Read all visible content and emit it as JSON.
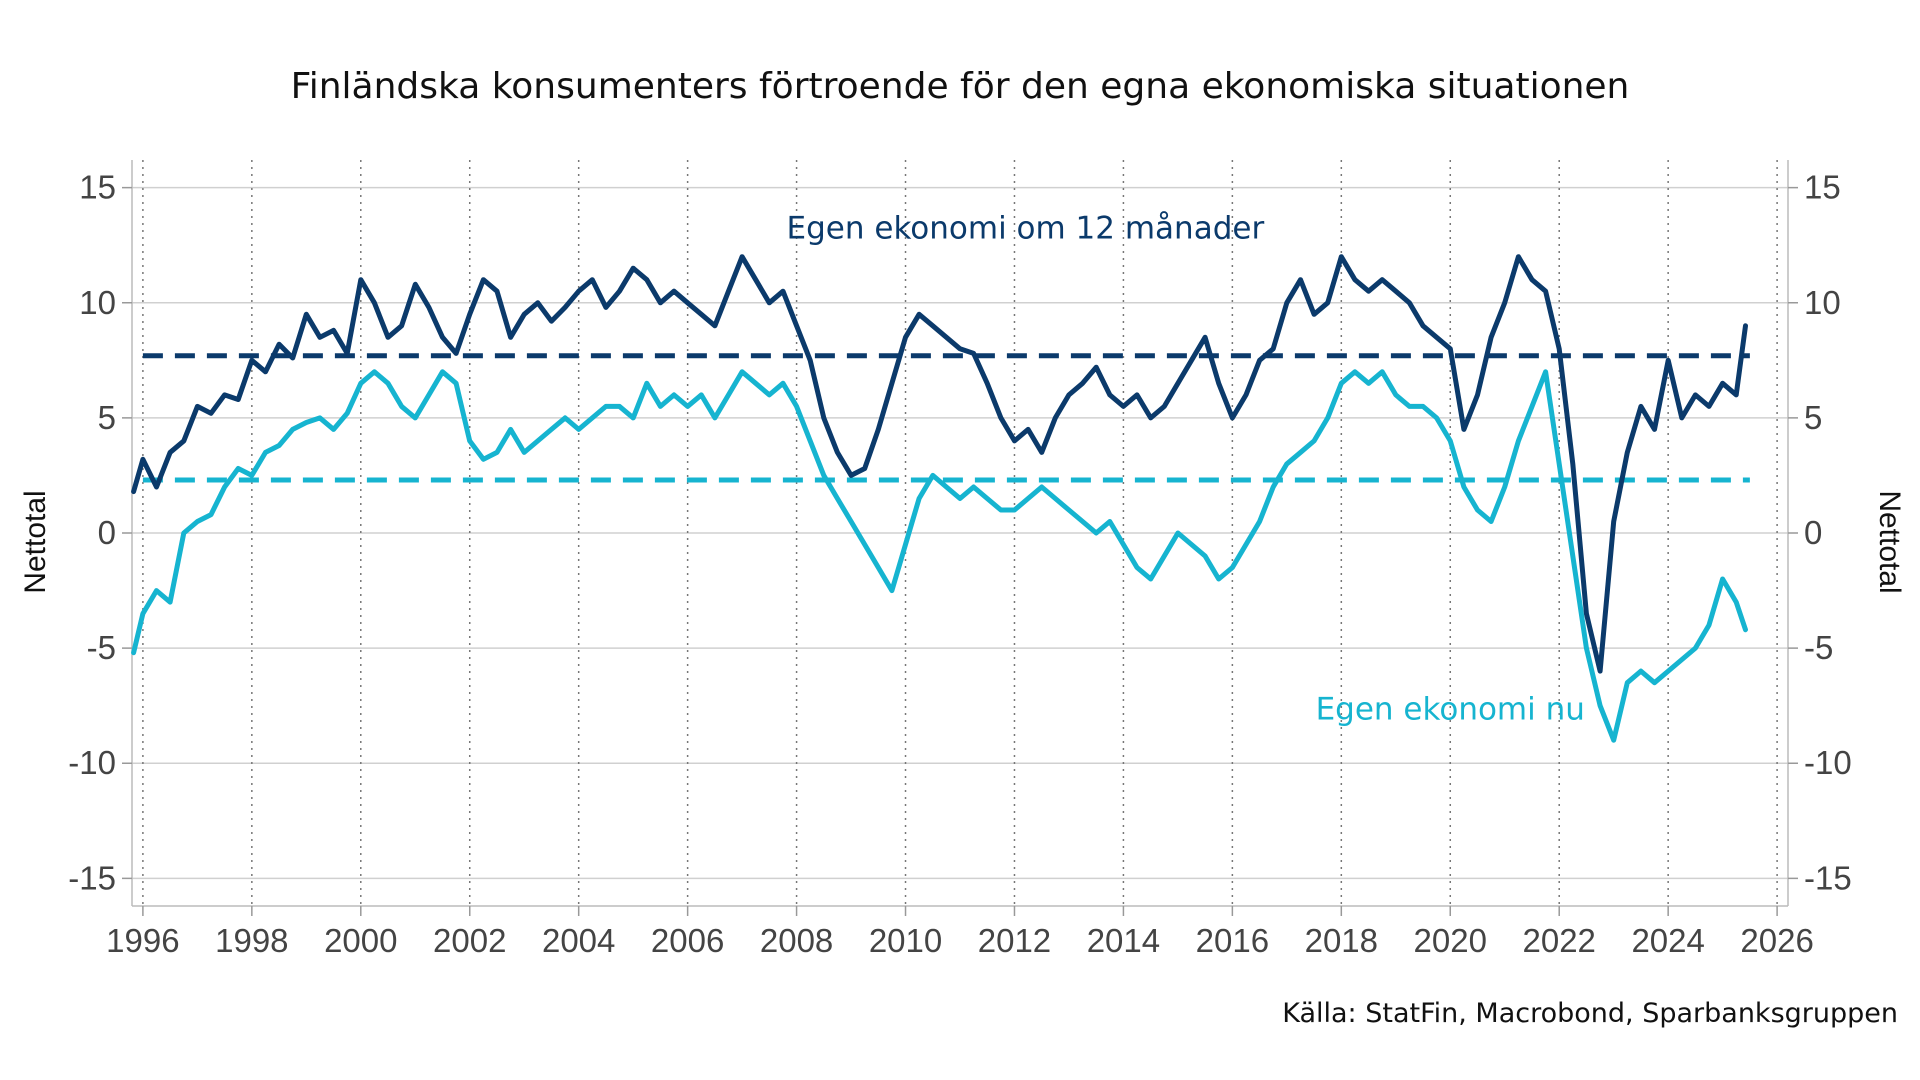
{
  "chart_data": {
    "type": "line",
    "title": "Finländska konsumenters förtroende för den egna ekonomiska situationen",
    "source": "Källa: StatFin, Macrobond, Sparbanksgruppen",
    "ylabel_left": "Nettotal",
    "ylabel_right": "Nettotal",
    "xlim": [
      1995.8,
      2026.2
    ],
    "ylim": [
      -16.2,
      16.2
    ],
    "x_ticks": [
      1996,
      1998,
      2000,
      2002,
      2004,
      2006,
      2008,
      2010,
      2012,
      2014,
      2016,
      2018,
      2020,
      2022,
      2024,
      2026
    ],
    "x_tick_labels": [
      "1996",
      "1998",
      "2000",
      "2002",
      "2004",
      "2006",
      "2008",
      "2010",
      "2012",
      "2014",
      "2016",
      "2018",
      "2020",
      "2022",
      "2024",
      "2026"
    ],
    "y_ticks": [
      15,
      10,
      5,
      0,
      -5,
      -10,
      -15
    ],
    "y_tick_labels": [
      "15",
      "10",
      "5",
      "0",
      "-5",
      "-10",
      "-15"
    ],
    "grid": {
      "horizontal": true,
      "vertical_dotted": true
    },
    "colors": {
      "future": "#0b3a6b",
      "now": "#16b4d0",
      "grid": "#d0d0d0",
      "vgrid": "#777777"
    },
    "series": [
      {
        "name": "Egen ekonomi om 12 månader",
        "average": 7.7,
        "label_x": 2012.2,
        "label_y": 12.8,
        "points": [
          [
            1995.83,
            1.8
          ],
          [
            1996.0,
            3.2
          ],
          [
            1996.25,
            2.0
          ],
          [
            1996.5,
            3.5
          ],
          [
            1996.75,
            4.0
          ],
          [
            1997.0,
            5.5
          ],
          [
            1997.25,
            5.2
          ],
          [
            1997.5,
            6.0
          ],
          [
            1997.75,
            5.8
          ],
          [
            1998.0,
            7.5
          ],
          [
            1998.25,
            7.0
          ],
          [
            1998.5,
            8.2
          ],
          [
            1998.75,
            7.6
          ],
          [
            1999.0,
            9.5
          ],
          [
            1999.25,
            8.5
          ],
          [
            1999.5,
            8.8
          ],
          [
            1999.75,
            7.8
          ],
          [
            2000.0,
            11.0
          ],
          [
            2000.25,
            10.0
          ],
          [
            2000.5,
            8.5
          ],
          [
            2000.75,
            9.0
          ],
          [
            2001.0,
            10.8
          ],
          [
            2001.25,
            9.8
          ],
          [
            2001.5,
            8.5
          ],
          [
            2001.75,
            7.8
          ],
          [
            2002.0,
            9.5
          ],
          [
            2002.25,
            11.0
          ],
          [
            2002.5,
            10.5
          ],
          [
            2002.75,
            8.5
          ],
          [
            2003.0,
            9.5
          ],
          [
            2003.25,
            10.0
          ],
          [
            2003.5,
            9.2
          ],
          [
            2003.75,
            9.8
          ],
          [
            2004.0,
            10.5
          ],
          [
            2004.25,
            11.0
          ],
          [
            2004.5,
            9.8
          ],
          [
            2004.75,
            10.5
          ],
          [
            2005.0,
            11.5
          ],
          [
            2005.25,
            11.0
          ],
          [
            2005.5,
            10.0
          ],
          [
            2005.75,
            10.5
          ],
          [
            2006.0,
            10.0
          ],
          [
            2006.25,
            9.5
          ],
          [
            2006.5,
            9.0
          ],
          [
            2006.75,
            10.5
          ],
          [
            2007.0,
            12.0
          ],
          [
            2007.25,
            11.0
          ],
          [
            2007.5,
            10.0
          ],
          [
            2007.75,
            10.5
          ],
          [
            2008.0,
            9.0
          ],
          [
            2008.25,
            7.5
          ],
          [
            2008.5,
            5.0
          ],
          [
            2008.75,
            3.5
          ],
          [
            2009.0,
            2.5
          ],
          [
            2009.25,
            2.8
          ],
          [
            2009.5,
            4.5
          ],
          [
            2009.75,
            6.5
          ],
          [
            2010.0,
            8.5
          ],
          [
            2010.25,
            9.5
          ],
          [
            2010.5,
            9.0
          ],
          [
            2010.75,
            8.5
          ],
          [
            2011.0,
            8.0
          ],
          [
            2011.25,
            7.8
          ],
          [
            2011.5,
            6.5
          ],
          [
            2011.75,
            5.0
          ],
          [
            2012.0,
            4.0
          ],
          [
            2012.25,
            4.5
          ],
          [
            2012.5,
            3.5
          ],
          [
            2012.75,
            5.0
          ],
          [
            2013.0,
            6.0
          ],
          [
            2013.25,
            6.5
          ],
          [
            2013.5,
            7.2
          ],
          [
            2013.75,
            6.0
          ],
          [
            2014.0,
            5.5
          ],
          [
            2014.25,
            6.0
          ],
          [
            2014.5,
            5.0
          ],
          [
            2014.75,
            5.5
          ],
          [
            2015.0,
            6.5
          ],
          [
            2015.25,
            7.5
          ],
          [
            2015.5,
            8.5
          ],
          [
            2015.75,
            6.5
          ],
          [
            2016.0,
            5.0
          ],
          [
            2016.25,
            6.0
          ],
          [
            2016.5,
            7.5
          ],
          [
            2016.75,
            8.0
          ],
          [
            2017.0,
            10.0
          ],
          [
            2017.25,
            11.0
          ],
          [
            2017.5,
            9.5
          ],
          [
            2017.75,
            10.0
          ],
          [
            2018.0,
            12.0
          ],
          [
            2018.25,
            11.0
          ],
          [
            2018.5,
            10.5
          ],
          [
            2018.75,
            11.0
          ],
          [
            2019.0,
            10.5
          ],
          [
            2019.25,
            10.0
          ],
          [
            2019.5,
            9.0
          ],
          [
            2019.75,
            8.5
          ],
          [
            2020.0,
            8.0
          ],
          [
            2020.25,
            4.5
          ],
          [
            2020.5,
            6.0
          ],
          [
            2020.75,
            8.5
          ],
          [
            2021.0,
            10.0
          ],
          [
            2021.25,
            12.0
          ],
          [
            2021.5,
            11.0
          ],
          [
            2021.75,
            10.5
          ],
          [
            2022.0,
            8.0
          ],
          [
            2022.25,
            3.0
          ],
          [
            2022.5,
            -3.5
          ],
          [
            2022.75,
            -6.0
          ],
          [
            2023.0,
            0.5
          ],
          [
            2023.25,
            3.5
          ],
          [
            2023.5,
            5.5
          ],
          [
            2023.75,
            4.5
          ],
          [
            2024.0,
            7.5
          ],
          [
            2024.25,
            5.0
          ],
          [
            2024.5,
            6.0
          ],
          [
            2024.75,
            5.5
          ],
          [
            2025.0,
            6.5
          ],
          [
            2025.25,
            6.0
          ],
          [
            2025.42,
            9.0
          ]
        ]
      },
      {
        "name": "Egen ekonomi nu",
        "average": 2.3,
        "label_x": 2020.0,
        "label_y": -8.1,
        "points": [
          [
            1995.83,
            -5.2
          ],
          [
            1996.0,
            -3.5
          ],
          [
            1996.25,
            -2.5
          ],
          [
            1996.5,
            -3.0
          ],
          [
            1996.75,
            0.0
          ],
          [
            1997.0,
            0.5
          ],
          [
            1997.25,
            0.8
          ],
          [
            1997.5,
            2.0
          ],
          [
            1997.75,
            2.8
          ],
          [
            1998.0,
            2.5
          ],
          [
            1998.25,
            3.5
          ],
          [
            1998.5,
            3.8
          ],
          [
            1998.75,
            4.5
          ],
          [
            1999.0,
            4.8
          ],
          [
            1999.25,
            5.0
          ],
          [
            1999.5,
            4.5
          ],
          [
            1999.75,
            5.2
          ],
          [
            2000.0,
            6.5
          ],
          [
            2000.25,
            7.0
          ],
          [
            2000.5,
            6.5
          ],
          [
            2000.75,
            5.5
          ],
          [
            2001.0,
            5.0
          ],
          [
            2001.25,
            6.0
          ],
          [
            2001.5,
            7.0
          ],
          [
            2001.75,
            6.5
          ],
          [
            2002.0,
            4.0
          ],
          [
            2002.25,
            3.2
          ],
          [
            2002.5,
            3.5
          ],
          [
            2002.75,
            4.5
          ],
          [
            2003.0,
            3.5
          ],
          [
            2003.25,
            4.0
          ],
          [
            2003.5,
            4.5
          ],
          [
            2003.75,
            5.0
          ],
          [
            2004.0,
            4.5
          ],
          [
            2004.25,
            5.0
          ],
          [
            2004.5,
            5.5
          ],
          [
            2004.75,
            5.5
          ],
          [
            2005.0,
            5.0
          ],
          [
            2005.25,
            6.5
          ],
          [
            2005.5,
            5.5
          ],
          [
            2005.75,
            6.0
          ],
          [
            2006.0,
            5.5
          ],
          [
            2006.25,
            6.0
          ],
          [
            2006.5,
            5.0
          ],
          [
            2006.75,
            6.0
          ],
          [
            2007.0,
            7.0
          ],
          [
            2007.25,
            6.5
          ],
          [
            2007.5,
            6.0
          ],
          [
            2007.75,
            6.5
          ],
          [
            2008.0,
            5.5
          ],
          [
            2008.25,
            4.0
          ],
          [
            2008.5,
            2.5
          ],
          [
            2008.75,
            1.5
          ],
          [
            2009.0,
            0.5
          ],
          [
            2009.25,
            -0.5
          ],
          [
            2009.5,
            -1.5
          ],
          [
            2009.75,
            -2.5
          ],
          [
            2010.0,
            -0.5
          ],
          [
            2010.25,
            1.5
          ],
          [
            2010.5,
            2.5
          ],
          [
            2010.75,
            2.0
          ],
          [
            2011.0,
            1.5
          ],
          [
            2011.25,
            2.0
          ],
          [
            2011.5,
            1.5
          ],
          [
            2011.75,
            1.0
          ],
          [
            2012.0,
            1.0
          ],
          [
            2012.25,
            1.5
          ],
          [
            2012.5,
            2.0
          ],
          [
            2012.75,
            1.5
          ],
          [
            2013.0,
            1.0
          ],
          [
            2013.25,
            0.5
          ],
          [
            2013.5,
            0.0
          ],
          [
            2013.75,
            0.5
          ],
          [
            2014.0,
            -0.5
          ],
          [
            2014.25,
            -1.5
          ],
          [
            2014.5,
            -2.0
          ],
          [
            2014.75,
            -1.0
          ],
          [
            2015.0,
            0.0
          ],
          [
            2015.25,
            -0.5
          ],
          [
            2015.5,
            -1.0
          ],
          [
            2015.75,
            -2.0
          ],
          [
            2016.0,
            -1.5
          ],
          [
            2016.25,
            -0.5
          ],
          [
            2016.5,
            0.5
          ],
          [
            2016.75,
            2.0
          ],
          [
            2017.0,
            3.0
          ],
          [
            2017.25,
            3.5
          ],
          [
            2017.5,
            4.0
          ],
          [
            2017.75,
            5.0
          ],
          [
            2018.0,
            6.5
          ],
          [
            2018.25,
            7.0
          ],
          [
            2018.5,
            6.5
          ],
          [
            2018.75,
            7.0
          ],
          [
            2019.0,
            6.0
          ],
          [
            2019.25,
            5.5
          ],
          [
            2019.5,
            5.5
          ],
          [
            2019.75,
            5.0
          ],
          [
            2020.0,
            4.0
          ],
          [
            2020.25,
            2.0
          ],
          [
            2020.5,
            1.0
          ],
          [
            2020.75,
            0.5
          ],
          [
            2021.0,
            2.0
          ],
          [
            2021.25,
            4.0
          ],
          [
            2021.5,
            5.5
          ],
          [
            2021.75,
            7.0
          ],
          [
            2022.0,
            3.0
          ],
          [
            2022.25,
            -1.0
          ],
          [
            2022.5,
            -5.0
          ],
          [
            2022.75,
            -7.5
          ],
          [
            2023.0,
            -9.0
          ],
          [
            2023.25,
            -6.5
          ],
          [
            2023.5,
            -6.0
          ],
          [
            2023.75,
            -6.5
          ],
          [
            2024.0,
            -6.0
          ],
          [
            2024.25,
            -5.5
          ],
          [
            2024.5,
            -5.0
          ],
          [
            2024.75,
            -4.0
          ],
          [
            2025.0,
            -2.0
          ],
          [
            2025.25,
            -3.0
          ],
          [
            2025.42,
            -4.2
          ]
        ]
      }
    ]
  }
}
